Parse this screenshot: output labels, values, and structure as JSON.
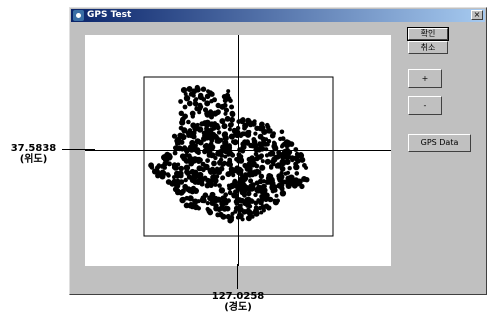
{
  "window": {
    "title": "GPS Test",
    "close_glyph": "×"
  },
  "buttons": {
    "ok": "확인",
    "cancel": "취소",
    "zoom_in": "+",
    "zoom_out": "-",
    "gps_data": "GPS Data"
  },
  "readouts": {
    "latitude_value": "37.5838",
    "latitude_label": "(위도)",
    "longitude_value": "127.0258",
    "longitude_label": "(경도)"
  },
  "icons": {
    "app": "gps-app-icon",
    "close": "close-icon"
  },
  "colors": {
    "titlebar_start": "#0a246a",
    "titlebar_end": "#a6caf0",
    "points": "#000000",
    "dialog_bg": "#c0c0c0"
  }
}
